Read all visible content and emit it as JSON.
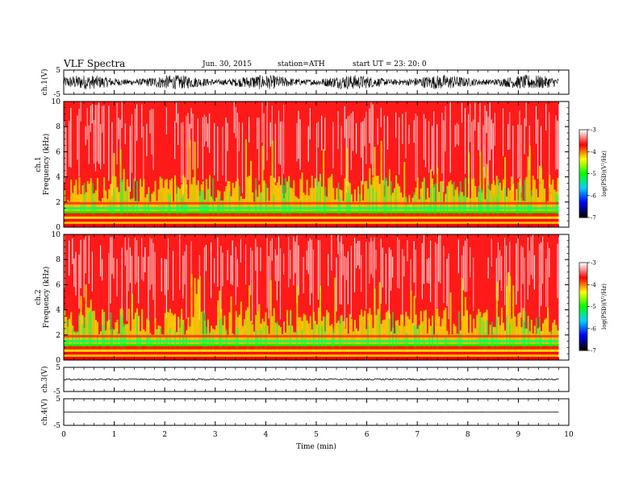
{
  "header": {
    "title": "VLF  Spectra",
    "date": "Jun. 30, 2015",
    "station": "station=ATH",
    "start": "start  UT  =   23: 20: 0"
  },
  "chart_data": {
    "type": "heatmap",
    "xlabel": "Time  (min)",
    "xlim": [
      0,
      10
    ],
    "x_ticks": [
      "0",
      "1",
      "2",
      "3",
      "4",
      "5",
      "6",
      "7",
      "8",
      "9",
      "10"
    ],
    "data_end_min": 9.8,
    "panels": [
      {
        "id": "ch1-waveform",
        "ylabel": "ch.1(V)",
        "ylim": [
          -5,
          5
        ],
        "y_ticks": [
          "5",
          "-5"
        ],
        "kind": "waveform",
        "noise_amplitude": 3
      },
      {
        "id": "ch1-spectrogram",
        "ylabel_line1": "ch.1",
        "ylabel_line2": "Frequency  (kHz)",
        "ylim": [
          0,
          10
        ],
        "y_ticks": [
          "0",
          "2",
          "4",
          "6",
          "8",
          "10"
        ],
        "kind": "spectrogram",
        "colorbar": {
          "label": "log(PSD)(V²/Hz)",
          "range": [
            -7,
            -3
          ],
          "ticks": [
            "-3",
            "-4",
            "-5",
            "-6",
            "-7"
          ]
        }
      },
      {
        "id": "ch2-spectrogram",
        "ylabel_line1": "ch.2",
        "ylabel_line2": "Frequency  (kHz)",
        "ylim": [
          0,
          10
        ],
        "y_ticks": [
          "0",
          "2",
          "4",
          "6",
          "8",
          "10"
        ],
        "kind": "spectrogram",
        "colorbar": {
          "label": "log(PSD)(V²/Hz)",
          "range": [
            -7,
            -3
          ],
          "ticks": [
            "-3",
            "-4",
            "-5",
            "-6",
            "-7"
          ]
        }
      },
      {
        "id": "ch3-waveform",
        "ylabel": "ch.3(V)",
        "ylim": [
          -5,
          5
        ],
        "y_ticks": [
          "5",
          "-5"
        ],
        "kind": "waveform",
        "noise_amplitude": 0.3
      },
      {
        "id": "ch4-waveform",
        "ylabel": "ch.4(V)",
        "ylim": [
          -5,
          5
        ],
        "y_ticks": [
          "5",
          "-5"
        ],
        "kind": "waveform",
        "noise_amplitude": 0.02
      }
    ],
    "colormap": [
      "#000000",
      "#0000ff",
      "#00d0ff",
      "#00ff00",
      "#ffff00",
      "#ff0000",
      "#ffffff"
    ]
  }
}
